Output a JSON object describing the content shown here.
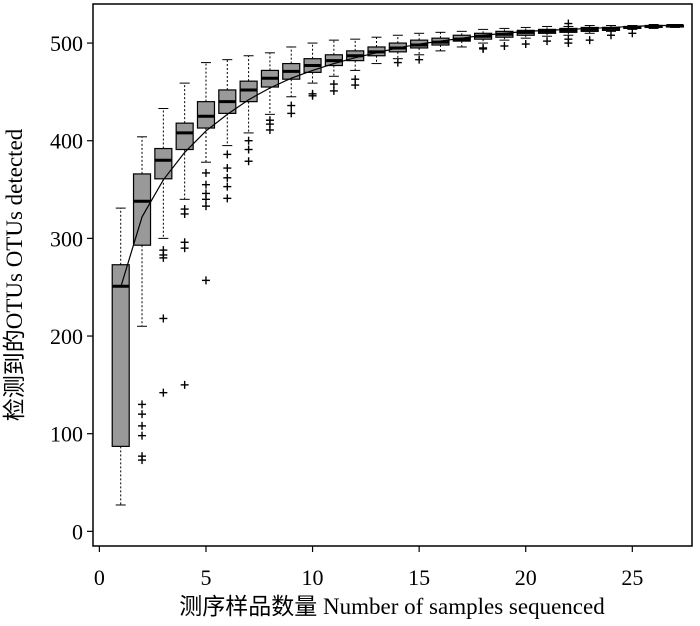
{
  "chart_data": {
    "type": "box",
    "xlabel": "测序样品数量  Number of samples sequenced",
    "ylabel": "检测到的OTUs OTUs detected",
    "xlim": [
      -0.3,
      27.8
    ],
    "ylim": [
      -15,
      540
    ],
    "xticks": [
      "0",
      "5",
      "10",
      "15",
      "20",
      "25"
    ],
    "yticks": [
      "0",
      "100",
      "200",
      "300",
      "400",
      "500"
    ],
    "grid": false,
    "legend": "none",
    "colors": {
      "box_fill": "#999999",
      "stroke": "#000000"
    },
    "boxes": [
      {
        "x": 1,
        "q1": 87,
        "median": 251,
        "q3": 273,
        "whisker_low": 27,
        "whisker_high": 331,
        "outliers": []
      },
      {
        "x": 2,
        "q1": 293,
        "median": 338,
        "q3": 366,
        "whisker_low": 210,
        "whisker_high": 404,
        "outliers": [
          130,
          120,
          108,
          98,
          77,
          73
        ]
      },
      {
        "x": 3,
        "q1": 361,
        "median": 380,
        "q3": 392,
        "whisker_low": 300,
        "whisker_high": 433,
        "outliers": [
          288,
          283,
          280,
          218,
          142
        ]
      },
      {
        "x": 4,
        "q1": 391,
        "median": 408,
        "q3": 418,
        "whisker_low": 340,
        "whisker_high": 459,
        "outliers": [
          330,
          325,
          296,
          290,
          150
        ]
      },
      {
        "x": 5,
        "q1": 413,
        "median": 425,
        "q3": 440,
        "whisker_low": 378,
        "whisker_high": 480,
        "outliers": [
          367,
          355,
          346,
          340,
          333,
          257
        ]
      },
      {
        "x": 6,
        "q1": 428,
        "median": 440,
        "q3": 452,
        "whisker_low": 395,
        "whisker_high": 483,
        "outliers": [
          386,
          372,
          362,
          353,
          341
        ]
      },
      {
        "x": 7,
        "q1": 440,
        "median": 452,
        "q3": 461,
        "whisker_low": 408,
        "whisker_high": 487,
        "outliers": [
          400,
          391,
          379
        ]
      },
      {
        "x": 8,
        "q1": 455,
        "median": 464,
        "q3": 472,
        "whisker_low": 427,
        "whisker_high": 490,
        "outliers": [
          421,
          417,
          411
        ]
      },
      {
        "x": 9,
        "q1": 463,
        "median": 471,
        "q3": 479,
        "whisker_low": 445,
        "whisker_high": 496,
        "outliers": [
          436,
          428
        ]
      },
      {
        "x": 10,
        "q1": 470,
        "median": 477,
        "q3": 484,
        "whisker_low": 459,
        "whisker_high": 500,
        "outliers": [
          448,
          446
        ]
      },
      {
        "x": 11,
        "q1": 477,
        "median": 482,
        "q3": 488,
        "whisker_low": 466,
        "whisker_high": 503,
        "outliers": [
          458,
          451
        ]
      },
      {
        "x": 12,
        "q1": 482,
        "median": 487,
        "q3": 492,
        "whisker_low": 472,
        "whisker_high": 504,
        "outliers": [
          463,
          457
        ]
      },
      {
        "x": 13,
        "q1": 487,
        "median": 491,
        "q3": 496,
        "whisker_low": 479,
        "whisker_high": 506,
        "outliers": []
      },
      {
        "x": 14,
        "q1": 491,
        "median": 495,
        "q3": 500,
        "whisker_low": 484,
        "whisker_high": 508,
        "outliers": [
          480
        ]
      },
      {
        "x": 15,
        "q1": 495,
        "median": 498,
        "q3": 503,
        "whisker_low": 488,
        "whisker_high": 510,
        "outliers": [
          483
        ]
      },
      {
        "x": 16,
        "q1": 498,
        "median": 501,
        "q3": 505,
        "whisker_low": 492,
        "whisker_high": 511,
        "outliers": []
      },
      {
        "x": 17,
        "q1": 502,
        "median": 504,
        "q3": 508,
        "whisker_low": 496,
        "whisker_high": 512,
        "outliers": []
      },
      {
        "x": 18,
        "q1": 504,
        "median": 507,
        "q3": 510,
        "whisker_low": 500,
        "whisker_high": 514,
        "outliers": [
          495,
          494
        ]
      },
      {
        "x": 19,
        "q1": 506,
        "median": 509,
        "q3": 512,
        "whisker_low": 503,
        "whisker_high": 515,
        "outliers": [
          497
        ]
      },
      {
        "x": 20,
        "q1": 508,
        "median": 511,
        "q3": 513,
        "whisker_low": 505,
        "whisker_high": 516,
        "outliers": [
          499
        ]
      },
      {
        "x": 21,
        "q1": 510,
        "median": 512,
        "q3": 514,
        "whisker_low": 507,
        "whisker_high": 517,
        "outliers": [
          502
        ]
      },
      {
        "x": 22,
        "q1": 511,
        "median": 513,
        "q3": 515,
        "whisker_low": 508,
        "whisker_high": 517,
        "outliers": [
          520,
          504,
          500
        ]
      },
      {
        "x": 23,
        "q1": 512,
        "median": 514,
        "q3": 516,
        "whisker_low": 510,
        "whisker_high": 518,
        "outliers": [
          503
        ]
      },
      {
        "x": 24,
        "q1": 513,
        "median": 515,
        "q3": 516,
        "whisker_low": 512,
        "whisker_high": 518,
        "outliers": [
          508
        ]
      },
      {
        "x": 25,
        "q1": 515,
        "median": 516,
        "q3": 517,
        "whisker_low": 514,
        "whisker_high": 518,
        "outliers": [
          510
        ]
      },
      {
        "x": 26,
        "q1": 516,
        "median": 517,
        "q3": 518,
        "whisker_low": 515,
        "whisker_high": 519,
        "outliers": []
      },
      {
        "x": 27,
        "q1": 517,
        "median": 518,
        "q3": 518,
        "whisker_low": 516,
        "whisker_high": 519,
        "outliers": []
      }
    ],
    "mean_line": {
      "x": [
        1,
        2,
        3,
        4,
        5,
        6,
        7,
        8,
        9,
        10,
        11,
        12,
        13,
        14,
        15,
        16,
        17,
        18,
        19,
        20,
        21,
        22,
        23,
        24,
        25,
        26,
        27
      ],
      "y": [
        250,
        322,
        360,
        388,
        410,
        427,
        442,
        454,
        464,
        472,
        479,
        485,
        490,
        495,
        499,
        502,
        505,
        508,
        510,
        512,
        513,
        514,
        515,
        516,
        517,
        518,
        518
      ]
    }
  }
}
